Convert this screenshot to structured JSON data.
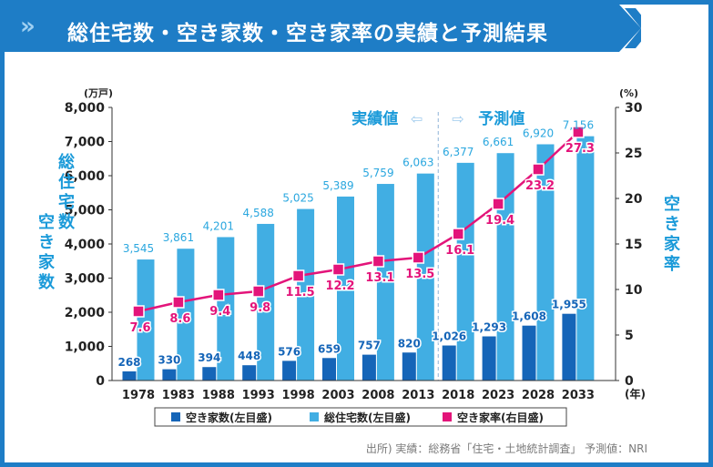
{
  "title": "総住宅数・空き家数・空き家率の実績と予測結果",
  "source": "出所) 実績：総務省「住宅・土地統計調査」 予測値：NRI",
  "colors": {
    "frame": "#1e7dc6",
    "total_bar": "#41aee3",
    "vacant_bar": "#1565b8",
    "rate_line": "#e3147a",
    "axis_label": "#1a9ad9",
    "value_label_total": "#2aa7df",
    "value_label_vacant": "#ffffff",
    "rate_label": "#e3147a",
    "divider": "#8fb4d8"
  },
  "chart_data": {
    "type": "bar",
    "categories": [
      "1978",
      "1983",
      "1988",
      "1993",
      "1998",
      "2003",
      "2008",
      "2013",
      "2018",
      "2023",
      "2028",
      "2033"
    ],
    "series": [
      {
        "name": "空き家数(左目盛)",
        "axis": "left",
        "type": "bar",
        "values": [
          268,
          330,
          394,
          448,
          576,
          659,
          757,
          820,
          1026,
          1293,
          1608,
          1955
        ],
        "labels": [
          "268",
          "330",
          "394",
          "448",
          "576",
          "659",
          "757",
          "820",
          "1,026",
          "1,293",
          "1,608",
          "1,955"
        ]
      },
      {
        "name": "総住宅数(左目盛)",
        "axis": "left",
        "type": "bar",
        "values": [
          3545,
          3861,
          4201,
          4588,
          5025,
          5389,
          5759,
          6063,
          6377,
          6661,
          6920,
          7156
        ],
        "labels": [
          "3,545",
          "3,861",
          "4,201",
          "4,588",
          "5,025",
          "5,389",
          "5,759",
          "6,063",
          "6,377",
          "6,661",
          "6,920",
          "7,156"
        ]
      },
      {
        "name": "空き家率(右目盛)",
        "axis": "right",
        "type": "line",
        "values": [
          7.6,
          8.6,
          9.4,
          9.8,
          11.5,
          12.2,
          13.1,
          13.5,
          16.1,
          19.4,
          23.2,
          27.3
        ],
        "labels": [
          "7.6",
          "8.6",
          "9.4",
          "9.8",
          "11.5",
          "12.2",
          "13.1",
          "13.5",
          "16.1",
          "19.4",
          "23.2",
          "27.3"
        ]
      }
    ],
    "y_left": {
      "range": [
        0,
        8000
      ],
      "unit": "(万戸)",
      "ticks": [
        "0",
        "1,000",
        "2,000",
        "3,000",
        "4,000",
        "5,000",
        "6,000",
        "7,000",
        "8,000"
      ],
      "label_line1": "総住宅数",
      "label_line2": "空き家数"
    },
    "y_right": {
      "range": [
        0,
        30
      ],
      "unit": "(%)",
      "ticks": [
        "0",
        "5",
        "10",
        "15",
        "20",
        "25",
        "30"
      ],
      "label": "空き家率"
    },
    "x_unit": "(年)",
    "actual_label": "実績値",
    "forecast_label": "予測値",
    "forecast_start_index": 8,
    "legend_position": "bottom"
  }
}
